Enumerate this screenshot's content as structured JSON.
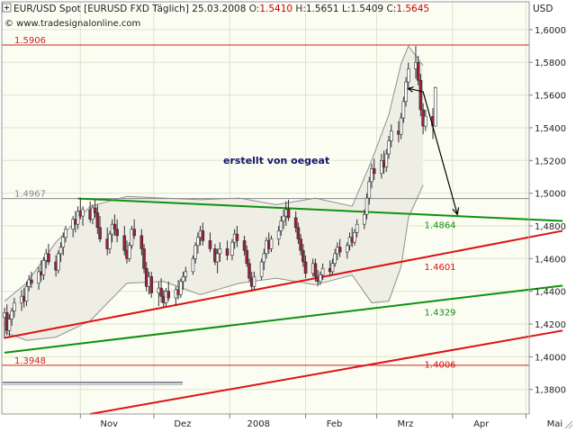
{
  "header": {
    "title": "EUR/USD Spot [EURUSD FXD  Täglich] 25.03.2008 ",
    "ohlc": [
      {
        "label": "O:",
        "value": "1.5410",
        "color": "#cc0000"
      },
      {
        "label": " H:",
        "value": "1.5651",
        "color": "#333333"
      },
      {
        "label": " L:",
        "value": "1.5409",
        "color": "#333333"
      },
      {
        "label": " C:",
        "value": "1.5645",
        "color": "#cc0000"
      }
    ],
    "website": "© www.tradesignalonline.com",
    "unit": "USD"
  },
  "annotation": "erstellt von oegeat",
  "colors": {
    "background": "#fbfdf3",
    "grid": "#dde4c8",
    "up_candle": "#ffffff",
    "down_candle": "#99223a",
    "candle_outline": "#303030",
    "bollinger": "#909090",
    "red_line": "#dd1111",
    "green_line": "#109010"
  },
  "chart_data": {
    "type": "candlestick",
    "symbol": "EUR/USD Spot",
    "y_axis": {
      "min": 1.365,
      "max": 1.617,
      "ticks": [
        1.38,
        1.4,
        1.42,
        1.44,
        1.46,
        1.48,
        1.5,
        1.52,
        1.54,
        1.56,
        1.58,
        1.6
      ],
      "tick_labels": [
        "1,3800",
        "1,4000",
        "1,4200",
        "1,4400",
        "1,4600",
        "1,4800",
        "1,5000",
        "1,5200",
        "1,5400",
        "1,5600",
        "1,5800",
        "1,6000"
      ]
    },
    "x_axis": {
      "start_date": "2007-10-01",
      "months": [
        {
          "label": "Nov",
          "date": "2007-11-01"
        },
        {
          "label": "Dez",
          "date": "2007-12-01"
        },
        {
          "label": "2008",
          "date": "2008-01-01"
        },
        {
          "label": "Feb",
          "date": "2008-02-01"
        },
        {
          "label": "Mrz",
          "date": "2008-03-01"
        },
        {
          "label": "Apr",
          "date": "2008-04-01"
        },
        {
          "label": "Mai",
          "date": "2008-05-01"
        }
      ]
    },
    "horizontal_levels": [
      {
        "value": 1.5906,
        "label": "1.5906",
        "color": "#cc2222"
      },
      {
        "value": 1.4967,
        "label": "1.4967",
        "color": "#888888"
      },
      {
        "value": 1.3948,
        "label": "1.3948",
        "color": "#cc2222"
      }
    ],
    "trend_lines": [
      {
        "name": "green-resistance",
        "color": "#109010",
        "from": {
          "date": "2007-10-31",
          "value": 1.4967
        },
        "to": {
          "date": "2008-05-16",
          "value": 1.483
        },
        "label": "1.4864",
        "label_date": "2008-03-22"
      },
      {
        "name": "red-upper",
        "color": "#dd1111",
        "from": {
          "date": "2007-10-01",
          "value": 1.4115
        },
        "to": {
          "date": "2008-05-16",
          "value": 1.477
        },
        "label": "1.4601",
        "label_date": "2008-03-22"
      },
      {
        "name": "green-lower",
        "color": "#109010",
        "from": {
          "date": "2007-10-01",
          "value": 1.4025
        },
        "to": {
          "date": "2008-05-16",
          "value": 1.4435
        },
        "label": "1.4329",
        "label_date": "2008-03-22"
      },
      {
        "name": "red-lower",
        "color": "#dd1111",
        "from": {
          "date": "2007-11-05",
          "value": 1.365
        },
        "to": {
          "date": "2008-05-16",
          "value": 1.416
        },
        "label": "1.4006",
        "label_date": "2008-03-22"
      }
    ],
    "forecast_path": [
      {
        "date": "2008-03-14",
        "value": 1.564
      },
      {
        "date": "2008-03-20",
        "value": 1.562
      },
      {
        "date": "2008-04-03",
        "value": 1.487
      }
    ],
    "bollinger": {
      "upper": [
        [
          1.434,
          "2007-10-01"
        ],
        [
          1.445,
          "2007-10-10"
        ],
        [
          1.47,
          "2007-10-22"
        ],
        [
          1.492,
          "2007-11-05"
        ],
        [
          1.498,
          "2007-11-20"
        ],
        [
          1.497,
          "2007-12-05"
        ],
        [
          1.496,
          "2007-12-20"
        ],
        [
          1.497,
          "2008-01-05"
        ],
        [
          1.493,
          "2008-01-20"
        ],
        [
          1.497,
          "2008-02-05"
        ],
        [
          1.492,
          "2008-02-20"
        ],
        [
          1.52,
          "2008-02-28"
        ],
        [
          1.548,
          "2008-03-06"
        ],
        [
          1.579,
          "2008-03-11"
        ],
        [
          1.59,
          "2008-03-14"
        ],
        [
          1.578,
          "2008-03-20"
        ]
      ],
      "lower": [
        [
          1.415,
          "2007-10-01"
        ],
        [
          1.41,
          "2007-10-10"
        ],
        [
          1.412,
          "2007-10-22"
        ],
        [
          1.422,
          "2007-11-05"
        ],
        [
          1.445,
          "2007-11-20"
        ],
        [
          1.446,
          "2007-12-05"
        ],
        [
          1.438,
          "2007-12-20"
        ],
        [
          1.445,
          "2008-01-05"
        ],
        [
          1.448,
          "2008-01-20"
        ],
        [
          1.444,
          "2008-02-05"
        ],
        [
          1.45,
          "2008-02-20"
        ],
        [
          1.433,
          "2008-02-28"
        ],
        [
          1.434,
          "2008-03-06"
        ],
        [
          1.455,
          "2008-03-11"
        ],
        [
          1.485,
          "2008-03-14"
        ],
        [
          1.505,
          "2008-03-20"
        ]
      ]
    },
    "ohlc_series": [
      [
        "2007-10-01",
        1.424,
        1.43,
        1.411,
        1.427
      ],
      [
        "2007-10-02",
        1.427,
        1.432,
        1.413,
        1.416
      ],
      [
        "2007-10-03",
        1.416,
        1.426,
        1.412,
        1.423
      ],
      [
        "2007-10-04",
        1.423,
        1.43,
        1.419,
        1.428
      ],
      [
        "2007-10-05",
        1.428,
        1.436,
        1.424,
        1.433
      ],
      [
        "2007-10-08",
        1.433,
        1.441,
        1.428,
        1.437
      ],
      [
        "2007-10-09",
        1.437,
        1.442,
        1.43,
        1.434
      ],
      [
        "2007-10-10",
        1.434,
        1.446,
        1.431,
        1.443
      ],
      [
        "2007-10-11",
        1.443,
        1.45,
        1.44,
        1.447
      ],
      [
        "2007-10-12",
        1.447,
        1.452,
        1.442,
        1.445
      ],
      [
        "2007-10-15",
        1.445,
        1.455,
        1.441,
        1.452
      ],
      [
        "2007-10-16",
        1.452,
        1.459,
        1.446,
        1.45
      ],
      [
        "2007-10-17",
        1.45,
        1.461,
        1.447,
        1.459
      ],
      [
        "2007-10-18",
        1.459,
        1.466,
        1.454,
        1.463
      ],
      [
        "2007-10-19",
        1.463,
        1.469,
        1.456,
        1.458
      ],
      [
        "2007-10-22",
        1.458,
        1.462,
        1.449,
        1.453
      ],
      [
        "2007-10-23",
        1.453,
        1.465,
        1.451,
        1.463
      ],
      [
        "2007-10-24",
        1.463,
        1.47,
        1.458,
        1.467
      ],
      [
        "2007-10-25",
        1.467,
        1.476,
        1.462,
        1.473
      ],
      [
        "2007-10-26",
        1.473,
        1.48,
        1.47,
        1.478
      ],
      [
        "2007-10-29",
        1.478,
        1.486,
        1.473,
        1.484
      ],
      [
        "2007-10-30",
        1.484,
        1.489,
        1.476,
        1.481
      ],
      [
        "2007-10-31",
        1.481,
        1.492,
        1.478,
        1.489
      ],
      [
        "2007-11-01",
        1.489,
        1.497,
        1.484,
        1.486
      ],
      [
        "2007-11-02",
        1.486,
        1.492,
        1.48,
        1.49
      ],
      [
        "2007-11-05",
        1.49,
        1.495,
        1.482,
        1.484
      ],
      [
        "2007-11-06",
        1.484,
        1.493,
        1.481,
        1.491
      ],
      [
        "2007-11-07",
        1.491,
        1.496,
        1.485,
        1.488
      ],
      [
        "2007-11-08",
        1.488,
        1.493,
        1.475,
        1.479
      ],
      [
        "2007-11-09",
        1.479,
        1.486,
        1.47,
        1.472
      ],
      [
        "2007-11-12",
        1.472,
        1.479,
        1.462,
        1.466
      ],
      [
        "2007-11-13",
        1.466,
        1.477,
        1.463,
        1.475
      ],
      [
        "2007-11-14",
        1.475,
        1.484,
        1.47,
        1.481
      ],
      [
        "2007-11-15",
        1.481,
        1.487,
        1.474,
        1.478
      ],
      [
        "2007-11-16",
        1.478,
        1.484,
        1.47,
        1.474
      ],
      [
        "2007-11-19",
        1.474,
        1.48,
        1.462,
        1.465
      ],
      [
        "2007-11-20",
        1.465,
        1.471,
        1.457,
        1.46
      ],
      [
        "2007-11-21",
        1.46,
        1.47,
        1.458,
        1.468
      ],
      [
        "2007-11-22",
        1.468,
        1.48,
        1.466,
        1.478
      ],
      [
        "2007-11-23",
        1.478,
        1.484,
        1.472,
        1.474
      ],
      [
        "2007-11-26",
        1.474,
        1.478,
        1.462,
        1.466
      ],
      [
        "2007-11-27",
        1.466,
        1.469,
        1.451,
        1.454
      ],
      [
        "2007-11-28",
        1.454,
        1.458,
        1.44,
        1.443
      ],
      [
        "2007-11-29",
        1.443,
        1.452,
        1.438,
        1.449
      ],
      [
        "2007-11-30",
        1.449,
        1.452,
        1.436,
        1.439
      ],
      [
        "2007-12-03",
        1.439,
        1.446,
        1.431,
        1.442
      ],
      [
        "2007-12-04",
        1.442,
        1.448,
        1.433,
        1.437
      ],
      [
        "2007-12-05",
        1.437,
        1.441,
        1.43,
        1.433
      ],
      [
        "2007-12-06",
        1.433,
        1.442,
        1.431,
        1.44
      ],
      [
        "2007-12-07",
        1.44,
        1.446,
        1.434,
        1.436
      ],
      [
        "2007-12-10",
        1.436,
        1.443,
        1.431,
        1.441
      ],
      [
        "2007-12-11",
        1.441,
        1.447,
        1.435,
        1.438
      ],
      [
        "2007-12-12",
        1.438,
        1.448,
        1.436,
        1.446
      ],
      [
        "2007-12-13",
        1.446,
        1.452,
        1.441,
        1.449
      ],
      [
        "2007-12-14",
        1.449,
        1.455,
        1.446,
        1.452
      ],
      [
        "2007-12-17",
        1.452,
        1.462,
        1.45,
        1.46
      ],
      [
        "2007-12-18",
        1.46,
        1.47,
        1.457,
        1.468
      ],
      [
        "2007-12-19",
        1.468,
        1.476,
        1.463,
        1.473
      ],
      [
        "2007-12-20",
        1.473,
        1.48,
        1.468,
        1.477
      ],
      [
        "2007-12-21",
        1.477,
        1.482,
        1.468,
        1.471
      ],
      [
        "2007-12-24",
        1.471,
        1.476,
        1.464,
        1.466
      ],
      [
        "2007-12-26",
        1.466,
        1.469,
        1.456,
        1.458
      ],
      [
        "2007-12-27",
        1.458,
        1.466,
        1.451,
        1.463
      ],
      [
        "2007-12-28",
        1.463,
        1.47,
        1.458,
        1.466
      ],
      [
        "2007-12-31",
        1.466,
        1.471,
        1.459,
        1.462
      ],
      [
        "2008-01-02",
        1.462,
        1.472,
        1.459,
        1.47
      ],
      [
        "2008-01-03",
        1.47,
        1.478,
        1.466,
        1.475
      ],
      [
        "2008-01-04",
        1.475,
        1.48,
        1.467,
        1.471
      ],
      [
        "2008-01-07",
        1.471,
        1.474,
        1.462,
        1.465
      ],
      [
        "2008-01-08",
        1.465,
        1.468,
        1.455,
        1.457
      ],
      [
        "2008-01-09",
        1.457,
        1.46,
        1.446,
        1.448
      ],
      [
        "2008-01-10",
        1.448,
        1.452,
        1.44,
        1.443
      ],
      [
        "2008-01-11",
        1.443,
        1.452,
        1.441,
        1.449
      ],
      [
        "2008-01-14",
        1.449,
        1.46,
        1.447,
        1.458
      ],
      [
        "2008-01-15",
        1.458,
        1.466,
        1.453,
        1.463
      ],
      [
        "2008-01-16",
        1.463,
        1.473,
        1.46,
        1.471
      ],
      [
        "2008-01-17",
        1.471,
        1.476,
        1.463,
        1.466
      ],
      [
        "2008-01-18",
        1.466,
        1.474,
        1.464,
        1.472
      ],
      [
        "2008-01-21",
        1.472,
        1.48,
        1.468,
        1.477
      ],
      [
        "2008-01-22",
        1.477,
        1.486,
        1.474,
        1.483
      ],
      [
        "2008-01-23",
        1.483,
        1.49,
        1.478,
        1.486
      ],
      [
        "2008-01-24",
        1.486,
        1.495,
        1.48,
        1.49
      ],
      [
        "2008-01-25",
        1.49,
        1.496,
        1.483,
        1.485
      ],
      [
        "2008-01-28",
        1.485,
        1.489,
        1.476,
        1.479
      ],
      [
        "2008-01-29",
        1.479,
        1.482,
        1.469,
        1.472
      ],
      [
        "2008-01-30",
        1.472,
        1.475,
        1.462,
        1.465
      ],
      [
        "2008-01-31",
        1.465,
        1.469,
        1.455,
        1.458
      ],
      [
        "2008-02-01",
        1.458,
        1.462,
        1.448,
        1.451
      ],
      [
        "2008-02-04",
        1.451,
        1.46,
        1.449,
        1.457
      ],
      [
        "2008-02-05",
        1.457,
        1.46,
        1.446,
        1.449
      ],
      [
        "2008-02-06",
        1.449,
        1.453,
        1.443,
        1.446
      ],
      [
        "2008-02-07",
        1.446,
        1.452,
        1.444,
        1.45
      ],
      [
        "2008-02-08",
        1.45,
        1.457,
        1.447,
        1.454
      ],
      [
        "2008-02-11",
        1.454,
        1.459,
        1.449,
        1.452
      ],
      [
        "2008-02-12",
        1.452,
        1.46,
        1.45,
        1.457
      ],
      [
        "2008-02-13",
        1.457,
        1.466,
        1.455,
        1.463
      ],
      [
        "2008-02-14",
        1.463,
        1.47,
        1.459,
        1.467
      ],
      [
        "2008-02-15",
        1.467,
        1.472,
        1.461,
        1.464
      ],
      [
        "2008-02-18",
        1.464,
        1.47,
        1.46,
        1.468
      ],
      [
        "2008-02-19",
        1.468,
        1.476,
        1.465,
        1.473
      ],
      [
        "2008-02-20",
        1.473,
        1.479,
        1.467,
        1.47
      ],
      [
        "2008-02-21",
        1.47,
        1.478,
        1.468,
        1.476
      ],
      [
        "2008-02-22",
        1.476,
        1.484,
        1.473,
        1.481
      ],
      [
        "2008-02-25",
        1.481,
        1.49,
        1.478,
        1.487
      ],
      [
        "2008-02-26",
        1.487,
        1.5,
        1.484,
        1.497
      ],
      [
        "2008-02-27",
        1.497,
        1.51,
        1.493,
        1.507
      ],
      [
        "2008-02-28",
        1.507,
        1.518,
        1.503,
        1.515
      ],
      [
        "2008-02-29",
        1.515,
        1.521,
        1.508,
        1.512
      ],
      [
        "2008-03-03",
        1.512,
        1.524,
        1.509,
        1.52
      ],
      [
        "2008-03-04",
        1.52,
        1.526,
        1.512,
        1.516
      ],
      [
        "2008-03-05",
        1.516,
        1.527,
        1.513,
        1.524
      ],
      [
        "2008-03-06",
        1.524,
        1.535,
        1.521,
        1.532
      ],
      [
        "2008-03-07",
        1.532,
        1.542,
        1.528,
        1.538
      ],
      [
        "2008-03-10",
        1.538,
        1.544,
        1.531,
        1.536
      ],
      [
        "2008-03-11",
        1.536,
        1.549,
        1.533,
        1.546
      ],
      [
        "2008-03-12",
        1.546,
        1.559,
        1.543,
        1.556
      ],
      [
        "2008-03-13",
        1.556,
        1.571,
        1.553,
        1.568
      ],
      [
        "2008-03-14",
        1.568,
        1.58,
        1.563,
        1.576
      ],
      [
        "2008-03-17",
        1.576,
        1.59,
        1.57,
        1.58
      ],
      [
        "2008-03-18",
        1.58,
        1.584,
        1.566,
        1.569
      ],
      [
        "2008-03-19",
        1.569,
        1.573,
        1.547,
        1.551
      ],
      [
        "2008-03-20",
        1.551,
        1.555,
        1.536,
        1.541
      ],
      [
        "2008-03-21",
        1.541,
        1.551,
        1.538,
        1.547
      ],
      [
        "2008-03-24",
        1.547,
        1.552,
        1.533,
        1.541
      ],
      [
        "2008-03-25",
        1.541,
        1.5651,
        1.5409,
        1.5645
      ]
    ]
  }
}
